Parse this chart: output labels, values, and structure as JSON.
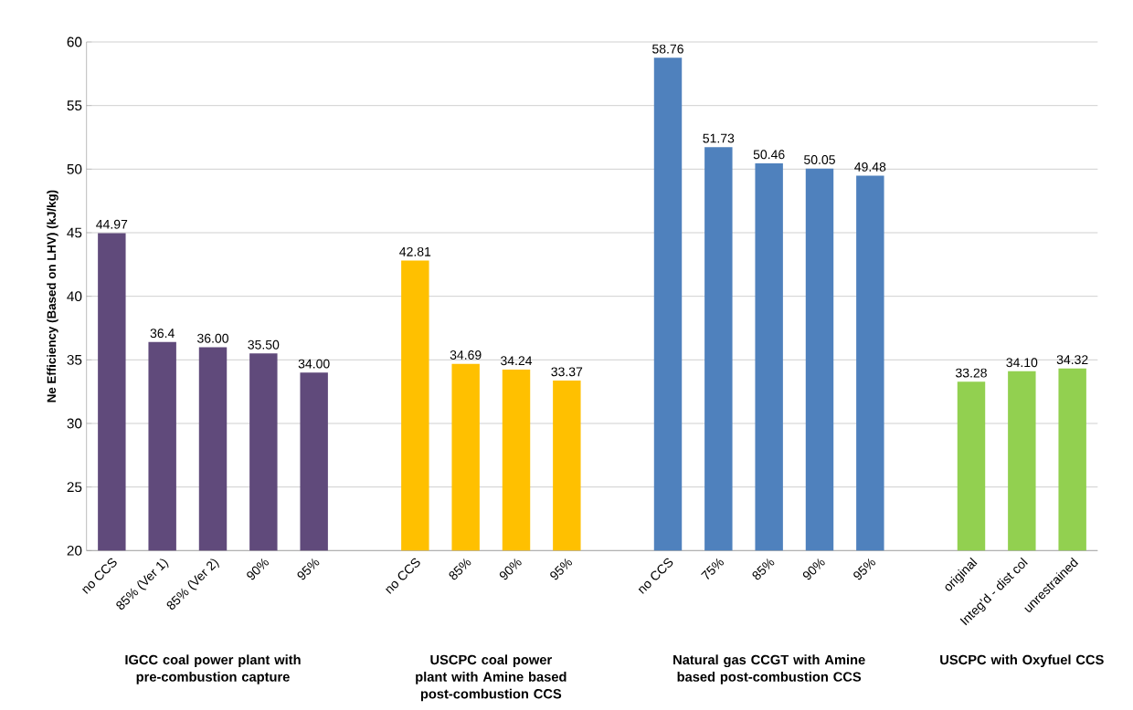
{
  "chart_data": {
    "type": "bar",
    "ylabel": "Ne Efficiency (Based  on LHV)    (kJ/kg)",
    "categories": [
      "no CCS",
      "85% (Ver 1)",
      "85% (Ver 2)",
      "90%",
      "95%",
      null,
      "no CCS",
      "85%",
      "90%",
      "95%",
      null,
      "no CCS",
      "75%",
      "85%",
      "90%",
      "95%",
      null,
      "original",
      "Integ'd - dist col",
      "unrestrained"
    ],
    "values": [
      44.97,
      36.4,
      36.0,
      35.5,
      34.0,
      null,
      42.81,
      34.69,
      34.24,
      33.37,
      null,
      58.76,
      51.73,
      50.46,
      50.05,
      49.48,
      null,
      33.28,
      34.1,
      34.32
    ],
    "value_labels": [
      "44.97",
      "36.4",
      "36.00",
      "35.50",
      "34.00",
      null,
      "42.81",
      "34.69",
      "34.24",
      "33.37",
      null,
      "58.76",
      "51.73",
      "50.46",
      "50.05",
      "49.48",
      null,
      "33.28",
      "34.10",
      "34.32"
    ],
    "colors": [
      "#604a7b",
      "#604a7b",
      "#604a7b",
      "#604a7b",
      "#604a7b",
      null,
      "#ffc000",
      "#ffc000",
      "#ffc000",
      "#ffc000",
      null,
      "#4f81bd",
      "#4f81bd",
      "#4f81bd",
      "#4f81bd",
      "#4f81bd",
      null,
      "#92d050",
      "#92d050",
      "#92d050"
    ],
    "ylim": [
      20,
      60
    ],
    "yticks": [
      20,
      25,
      30,
      35,
      40,
      45,
      50,
      55,
      60
    ],
    "grid": "y",
    "annotations": [
      "IGCC coal power plant with pre-combustion capture",
      "USCPC coal power plant with Amine based post-combustion CCS",
      "Natural gas  CCGT with Amine based post-combustion CCS",
      "USCPC with  Oxyfuel CCS"
    ]
  }
}
